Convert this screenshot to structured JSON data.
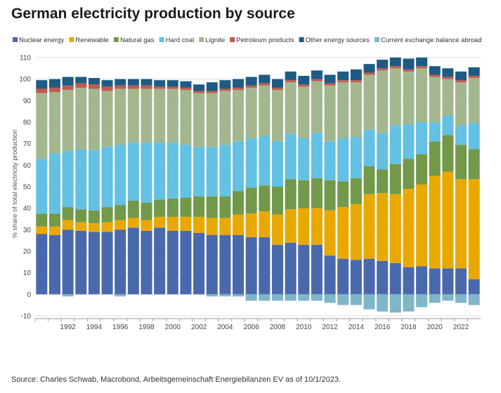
{
  "title": "German electricity production by source",
  "source": "Source: Charles Schwab, Macrobond, Arbeitsgemeinschaft Energiebilanzen EV as of 10/1/2023.",
  "chart_data": {
    "type": "bar",
    "stacked": true,
    "ylabel": "% share of total electricity production",
    "xlabel": "",
    "ylim": [
      -10,
      110
    ],
    "yticks": [
      -10,
      0,
      10,
      20,
      30,
      40,
      50,
      60,
      70,
      80,
      90,
      100,
      110
    ],
    "grid": true,
    "legend_position": "top",
    "categories": [
      "1990",
      "1991",
      "1992",
      "1993",
      "1994",
      "1995",
      "1996",
      "1997",
      "1998",
      "1999",
      "2000",
      "2001",
      "2002",
      "2003",
      "2004",
      "2005",
      "2006",
      "2007",
      "2008",
      "2009",
      "2010",
      "2011",
      "2012",
      "2013",
      "2014",
      "2015",
      "2016",
      "2017",
      "2018",
      "2019",
      "2020",
      "2021",
      "2022",
      "2023"
    ],
    "x_tick_labels": [
      "1992",
      "1994",
      "1996",
      "1998",
      "2000",
      "2002",
      "2004",
      "2006",
      "2008",
      "2010",
      "2012",
      "2014",
      "2016",
      "2018",
      "2020",
      "2022"
    ],
    "series": [
      {
        "name": "Nuclear energy",
        "color": "#4a69ad",
        "values": [
          28,
          27.5,
          30,
          29.5,
          29,
          29,
          30,
          31,
          29.5,
          31,
          29.5,
          29.5,
          28.5,
          27.5,
          27.5,
          27.5,
          26.5,
          26.5,
          23,
          24,
          23,
          23,
          18,
          16.5,
          16,
          16.5,
          15.5,
          14.5,
          12.5,
          13,
          12,
          12,
          12,
          7
        ]
      },
      {
        "name": "Renewable",
        "color": "#e9a800",
        "values": [
          3.5,
          4,
          4.5,
          4,
          4,
          4.5,
          4.5,
          4.5,
          5,
          5,
          6.5,
          6.5,
          7.5,
          8,
          8,
          9.5,
          11,
          12,
          14,
          15.5,
          17,
          17,
          21,
          24,
          26,
          30,
          31.5,
          32,
          36.5,
          38,
          43,
          45,
          41.5,
          46.5
        ]
      },
      {
        "name": "Natural gas",
        "color": "#72994a",
        "values": [
          6,
          6,
          6,
          6,
          6,
          7,
          7,
          8,
          8,
          8,
          8.5,
          9,
          9.5,
          10,
          10,
          11,
          12,
          12,
          13,
          14,
          13,
          14,
          14,
          12,
          12,
          13,
          11,
          14,
          14,
          14,
          16,
          17,
          16,
          14
        ]
      },
      {
        "name": "Hard coal",
        "color": "#63c1e3",
        "values": [
          25.5,
          28,
          26,
          28,
          28,
          28,
          28,
          27,
          28,
          26.5,
          26,
          24.5,
          23,
          23,
          24,
          23,
          23,
          23,
          21,
          21,
          19.5,
          21,
          18,
          20,
          19,
          17,
          17,
          18,
          16,
          15,
          9,
          9,
          9,
          12
        ]
      },
      {
        "name": "Lignite",
        "color": "#a3b78f",
        "values": [
          30.5,
          28.5,
          28.5,
          28.5,
          28.5,
          26,
          26,
          25,
          25,
          25,
          25,
          25.5,
          25,
          25,
          25,
          24,
          23.5,
          23.5,
          24,
          24,
          24,
          24,
          26,
          26,
          25.5,
          25.5,
          29,
          26.5,
          24.5,
          25,
          21,
          17,
          20,
          21
        ]
      },
      {
        "name": "Petroleum products",
        "color": "#c35a4e",
        "values": [
          2,
          2,
          2,
          2,
          2,
          2,
          1.5,
          1.5,
          1.5,
          1,
          1,
          1,
          1,
          1,
          1,
          1,
          1,
          1,
          1,
          1,
          1,
          1,
          1,
          1,
          1,
          1,
          1,
          1,
          1,
          1,
          1,
          1,
          1,
          1
        ]
      },
      {
        "name": "Other energy sources",
        "color": "#1e5b84",
        "values": [
          4,
          4,
          4,
          3,
          3,
          3,
          3,
          3,
          3,
          3,
          3,
          3,
          3,
          4,
          4,
          4,
          4,
          4,
          4,
          4,
          4,
          4,
          4,
          4,
          5,
          4,
          4,
          4,
          5,
          4,
          4,
          4,
          4,
          4
        ]
      },
      {
        "name": "Current exchange balance abroad",
        "color": "#7fb6c8",
        "values": [
          0,
          0,
          -1,
          0,
          0,
          0,
          -1,
          0,
          0,
          0,
          0,
          0,
          0,
          -1,
          -1,
          -1,
          -3,
          -3,
          -3,
          -3,
          -3,
          -3,
          -4,
          -5,
          -5,
          -7,
          -8,
          -8.5,
          -8,
          -6,
          -4,
          -3,
          -4,
          -5
        ]
      }
    ]
  }
}
